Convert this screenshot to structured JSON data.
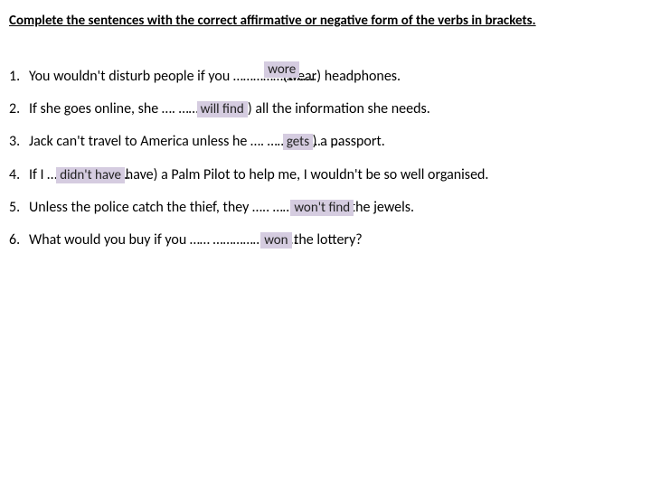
{
  "colors": {
    "page_bg": "#ffffff",
    "text": "#000000",
    "highlight_bg": "#d5cce0",
    "highlight_text": "#222222"
  },
  "typography": {
    "font_family": "Calibri, Arial, sans-serif",
    "instruction_fontsize": 15,
    "instruction_weight": "bold",
    "instruction_underline": true,
    "sentence_fontsize": 16
  },
  "instructions": "Complete the sentences with the correct affirmative or negative form of the verbs in brackets.",
  "sentences": [
    {
      "num": "1.",
      "pre": "You wouldn't disturb people if you …………………….",
      "answer": "wore",
      "post": " (wear) headphones."
    },
    {
      "num": "2.",
      "pre": "If she goes online, she …. ……………….. ",
      "answer": "will find",
      "post": "(find) all the information she needs."
    },
    {
      "num": "3.",
      "pre": "Jack can't travel to America unless he ….   ……………. . … ",
      "answer": "gets",
      "post": "(get) a passport."
    },
    {
      "num": "4.",
      "pre": "If I ……………………. ",
      "answer": "didn't have",
      "post": "(have) a Palm Pilot to help me, I wouldn't be so well organised."
    },
    {
      "num": "5.",
      "pre": "Unless the police catch the thief, they …..   ………………. . ",
      "answer": "won't find",
      "post": "(find) the jewels."
    },
    {
      "num": "6.",
      "pre": "What would you buy if you …… ……………. . ……",
      "answer": "won",
      "post": " (win) the lottery?"
    }
  ]
}
